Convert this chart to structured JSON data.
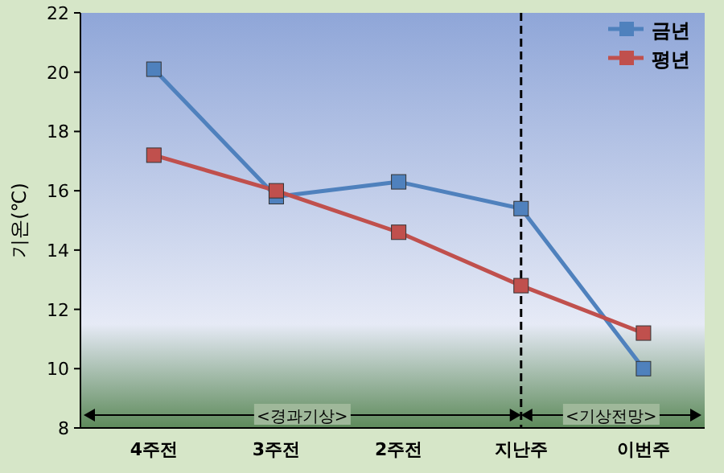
{
  "chart_data": {
    "type": "line",
    "ylabel": "기온(℃)",
    "categories": [
      "4주전",
      "3주전",
      "2주전",
      "지난주",
      "이번주"
    ],
    "series": [
      {
        "name": "금년",
        "color": "#4f81bd",
        "values": [
          20.1,
          15.8,
          16.3,
          15.4,
          10.0
        ]
      },
      {
        "name": "평년",
        "color": "#c0504d",
        "values": [
          17.2,
          16.0,
          14.6,
          12.8,
          11.2
        ]
      }
    ],
    "ylim": [
      8,
      22
    ],
    "yticks": [
      8,
      10,
      12,
      14,
      16,
      18,
      20,
      22
    ],
    "marker": "square",
    "legend": "top right",
    "ref_lines": [
      {
        "axis": "x",
        "value": "지난주",
        "color": "#000000",
        "line_style": "dashed"
      }
    ],
    "annotations": [
      "<경과기상>",
      "<기상전망>"
    ]
  }
}
